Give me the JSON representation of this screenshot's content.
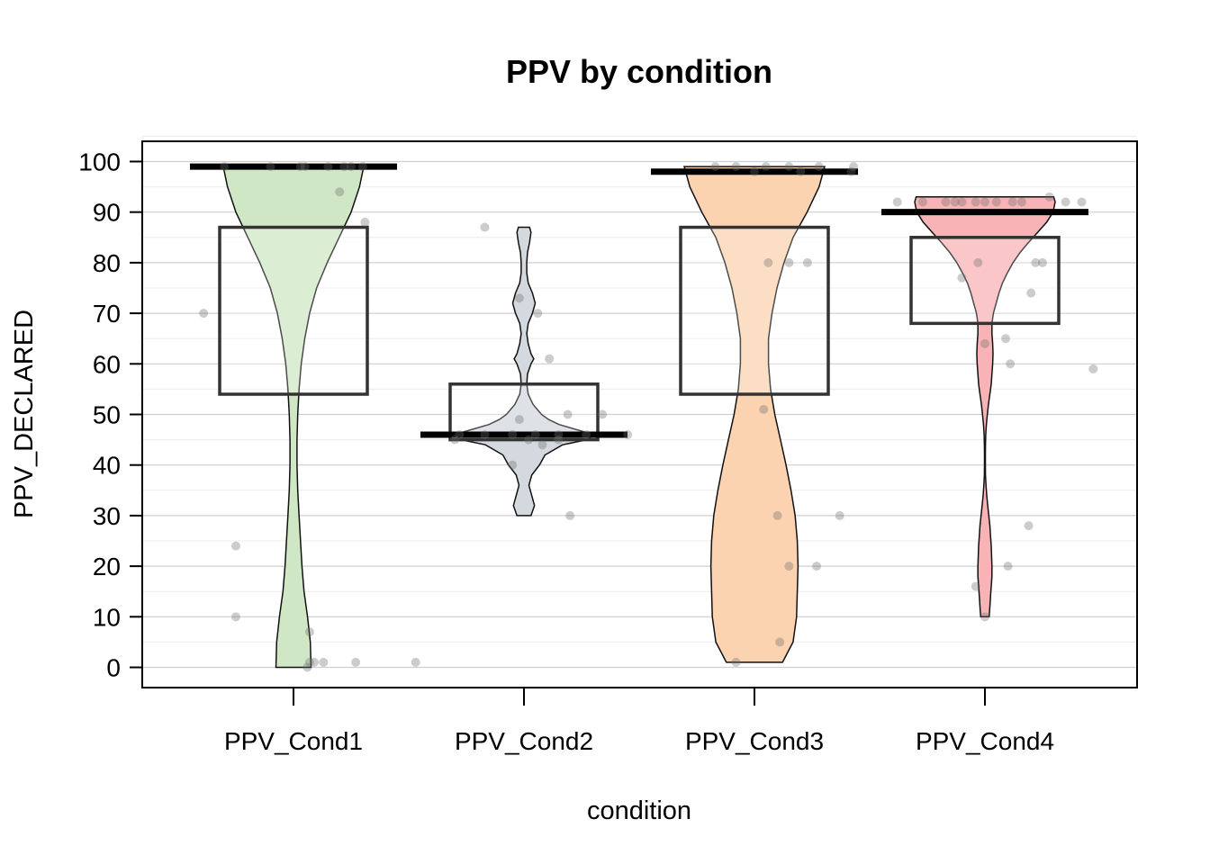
{
  "chart_data": {
    "type": "pirate",
    "title": "PPV by condition",
    "xlabel": "condition",
    "ylabel": "PPV_DECLARED",
    "ylim": [
      -4,
      104
    ],
    "yticks": [
      0,
      10,
      20,
      30,
      40,
      50,
      60,
      70,
      80,
      90,
      100
    ],
    "grid": true,
    "categories": [
      "PPV_Cond1",
      "PPV_Cond2",
      "PPV_Cond3",
      "PPV_Cond4"
    ],
    "colors": [
      "#cfe7c4",
      "#d3d9df",
      "#fbd3b0",
      "#f8b3b6"
    ],
    "groups": [
      {
        "name": "PPV_Cond1",
        "center": 99,
        "hdi": [
          54,
          87
        ],
        "points": [
          [
            0.7,
            99
          ],
          [
            0.9,
            99
          ],
          [
            1.05,
            99
          ],
          [
            1.15,
            99
          ],
          [
            1.25,
            99
          ],
          [
            1.3,
            99
          ],
          [
            1.22,
            99
          ],
          [
            1.03,
            99
          ],
          [
            1.2,
            94
          ],
          [
            1.31,
            88
          ],
          [
            0.61,
            70
          ],
          [
            0.75,
            24
          ],
          [
            0.75,
            10
          ],
          [
            1.07,
            7
          ],
          [
            1.07,
            1
          ],
          [
            1.09,
            1
          ],
          [
            1.13,
            1
          ],
          [
            1.27,
            1
          ],
          [
            1.53,
            1
          ],
          [
            1.06,
            0
          ]
        ],
        "density": [
          [
            0,
            0.25
          ],
          [
            5,
            0.24
          ],
          [
            10,
            0.2
          ],
          [
            15,
            0.15
          ],
          [
            20,
            0.12
          ],
          [
            25,
            0.1
          ],
          [
            30,
            0.08
          ],
          [
            35,
            0.06
          ],
          [
            40,
            0.05
          ],
          [
            45,
            0.05
          ],
          [
            50,
            0.06
          ],
          [
            55,
            0.08
          ],
          [
            60,
            0.11
          ],
          [
            65,
            0.16
          ],
          [
            70,
            0.23
          ],
          [
            75,
            0.33
          ],
          [
            80,
            0.48
          ],
          [
            85,
            0.65
          ],
          [
            90,
            0.82
          ],
          [
            95,
            0.94
          ],
          [
            99,
            1
          ]
        ]
      },
      {
        "name": "PPV_Cond2",
        "center": 46,
        "hdi": [
          45,
          56
        ],
        "points": [
          [
            1.83,
            87
          ],
          [
            1.98,
            73
          ],
          [
            2.06,
            70
          ],
          [
            2.11,
            61
          ],
          [
            2.19,
            50
          ],
          [
            2.34,
            50
          ],
          [
            1.98,
            49
          ],
          [
            1.72,
            46
          ],
          [
            1.83,
            46
          ],
          [
            1.95,
            46
          ],
          [
            2.05,
            46
          ],
          [
            2.15,
            46
          ],
          [
            2.27,
            46
          ],
          [
            2.45,
            46
          ],
          [
            1.7,
            45
          ],
          [
            2.02,
            45
          ],
          [
            2.08,
            44
          ],
          [
            2.15,
            45
          ],
          [
            1.95,
            40
          ],
          [
            2.2,
            30
          ]
        ],
        "density": [
          [
            30,
            0.1
          ],
          [
            32,
            0.15
          ],
          [
            34,
            0.11
          ],
          [
            36,
            0.07
          ],
          [
            38,
            0.11
          ],
          [
            40,
            0.22
          ],
          [
            42,
            0.3
          ],
          [
            44,
            0.55
          ],
          [
            45,
            0.9
          ],
          [
            46,
            1
          ],
          [
            47,
            0.75
          ],
          [
            48,
            0.5
          ],
          [
            49,
            0.35
          ],
          [
            50,
            0.25
          ],
          [
            52,
            0.13
          ],
          [
            54,
            0.06
          ],
          [
            56,
            0.04
          ],
          [
            58,
            0.05
          ],
          [
            60,
            0.1
          ],
          [
            61,
            0.14
          ],
          [
            62,
            0.1
          ],
          [
            64,
            0.06
          ],
          [
            66,
            0.04
          ],
          [
            68,
            0.06
          ],
          [
            70,
            0.12
          ],
          [
            72,
            0.16
          ],
          [
            74,
            0.12
          ],
          [
            76,
            0.06
          ],
          [
            78,
            0.04
          ],
          [
            80,
            0.04
          ],
          [
            82,
            0.05
          ],
          [
            84,
            0.08
          ],
          [
            86,
            0.1
          ],
          [
            87,
            0.08
          ]
        ]
      },
      {
        "name": "PPV_Cond3",
        "center": 98,
        "hdi": [
          54,
          87
        ],
        "points": [
          [
            2.83,
            99
          ],
          [
            2.92,
            99
          ],
          [
            3.05,
            99
          ],
          [
            3.15,
            99
          ],
          [
            3.28,
            99
          ],
          [
            3.43,
            99
          ],
          [
            3.42,
            98
          ],
          [
            3.0,
            98
          ],
          [
            3.2,
            98
          ],
          [
            3.06,
            80
          ],
          [
            3.15,
            80
          ],
          [
            3.23,
            80
          ],
          [
            3.04,
            51
          ],
          [
            3.1,
            30
          ],
          [
            3.37,
            30
          ],
          [
            3.15,
            20
          ],
          [
            3.27,
            20
          ],
          [
            3.11,
            5
          ],
          [
            2.92,
            1
          ]
        ],
        "density": [
          [
            1,
            0.4
          ],
          [
            5,
            0.55
          ],
          [
            10,
            0.6
          ],
          [
            15,
            0.61
          ],
          [
            20,
            0.62
          ],
          [
            25,
            0.61
          ],
          [
            30,
            0.58
          ],
          [
            35,
            0.52
          ],
          [
            40,
            0.45
          ],
          [
            45,
            0.37
          ],
          [
            50,
            0.29
          ],
          [
            55,
            0.23
          ],
          [
            60,
            0.2
          ],
          [
            65,
            0.2
          ],
          [
            70,
            0.25
          ],
          [
            75,
            0.32
          ],
          [
            80,
            0.42
          ],
          [
            85,
            0.55
          ],
          [
            90,
            0.75
          ],
          [
            95,
            0.92
          ],
          [
            99,
            1
          ]
        ]
      },
      {
        "name": "PPV_Cond4",
        "center": 90,
        "hdi": [
          68,
          85
        ],
        "points": [
          [
            3.62,
            92
          ],
          [
            3.73,
            92
          ],
          [
            3.83,
            92
          ],
          [
            3.9,
            92
          ],
          [
            3.96,
            92
          ],
          [
            4.0,
            92
          ],
          [
            4.05,
            92
          ],
          [
            4.12,
            92
          ],
          [
            4.16,
            92
          ],
          [
            4.35,
            92
          ],
          [
            4.42,
            92
          ],
          [
            4.28,
            93
          ],
          [
            3.87,
            92
          ],
          [
            3.97,
            80
          ],
          [
            4.22,
            80
          ],
          [
            4.25,
            80
          ],
          [
            3.9,
            77
          ],
          [
            4.2,
            74
          ],
          [
            4.0,
            64
          ],
          [
            4.09,
            65
          ],
          [
            4.11,
            60
          ],
          [
            4.47,
            59
          ],
          [
            4.19,
            28
          ],
          [
            4.1,
            20
          ],
          [
            3.96,
            16
          ],
          [
            4.0,
            10
          ]
        ],
        "density": [
          [
            10,
            0.06
          ],
          [
            12,
            0.07
          ],
          [
            14,
            0.08
          ],
          [
            16,
            0.09
          ],
          [
            18,
            0.1
          ],
          [
            20,
            0.1
          ],
          [
            22,
            0.095
          ],
          [
            24,
            0.09
          ],
          [
            26,
            0.08
          ],
          [
            28,
            0.07
          ],
          [
            30,
            0.055
          ],
          [
            32,
            0.04
          ],
          [
            34,
            0.025
          ],
          [
            36,
            0.015
          ],
          [
            38,
            0.008
          ],
          [
            40,
            0.006
          ],
          [
            42,
            0.006
          ],
          [
            44,
            0.008
          ],
          [
            46,
            0.012
          ],
          [
            48,
            0.02
          ],
          [
            50,
            0.035
          ],
          [
            52,
            0.05
          ],
          [
            54,
            0.07
          ],
          [
            56,
            0.09
          ],
          [
            58,
            0.1
          ],
          [
            60,
            0.11
          ],
          [
            62,
            0.115
          ],
          [
            64,
            0.11
          ],
          [
            66,
            0.1
          ],
          [
            68,
            0.1
          ],
          [
            70,
            0.12
          ],
          [
            72,
            0.16
          ],
          [
            74,
            0.2
          ],
          [
            76,
            0.25
          ],
          [
            78,
            0.32
          ],
          [
            80,
            0.4
          ],
          [
            82,
            0.5
          ],
          [
            84,
            0.62
          ],
          [
            86,
            0.75
          ],
          [
            88,
            0.88
          ],
          [
            90,
            0.97
          ],
          [
            92,
            1
          ],
          [
            93,
            0.98
          ]
        ]
      }
    ]
  }
}
